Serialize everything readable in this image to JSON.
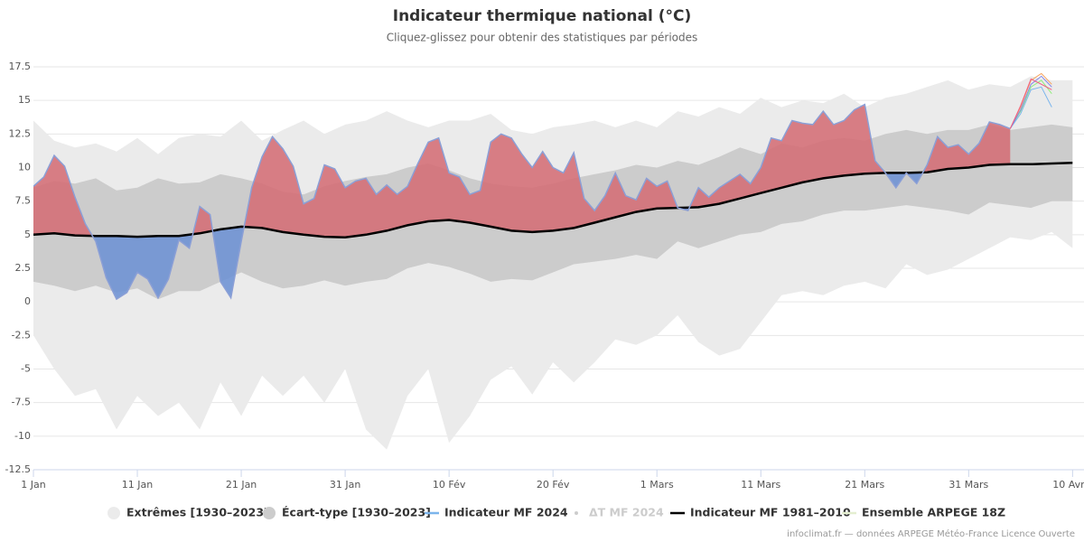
{
  "chart_data": {
    "type": "line",
    "title": "Indicateur thermique national (°C)",
    "subtitle": "Cliquez-glissez pour obtenir des statistiques par périodes",
    "credits": "infoclimat.fr — données ARPEGE Météo-France Licence Ouverte",
    "x": [
      0,
      2,
      4,
      6,
      8,
      10,
      12,
      14,
      16,
      18,
      20,
      22,
      24,
      26,
      28,
      30,
      32,
      34,
      36,
      38,
      40,
      42,
      44,
      46,
      48,
      50,
      52,
      54,
      56,
      58,
      60,
      62,
      64,
      66,
      68,
      70,
      72,
      74,
      76,
      78,
      80,
      82,
      84,
      86,
      88,
      90,
      92,
      94,
      96,
      98,
      100
    ],
    "xlim": [
      0,
      101.1
    ],
    "xticks": [
      {
        "value": 0,
        "label": "1 Jan"
      },
      {
        "value": 10,
        "label": "11 Jan"
      },
      {
        "value": 20,
        "label": "21 Jan"
      },
      {
        "value": 30,
        "label": "31 Jan"
      },
      {
        "value": 40,
        "label": "10 Fév"
      },
      {
        "value": 50,
        "label": "20 Fév"
      },
      {
        "value": 60,
        "label": "1 Mars"
      },
      {
        "value": 70,
        "label": "11 Mars"
      },
      {
        "value": 80,
        "label": "21 Mars"
      },
      {
        "value": 90,
        "label": "31 Mars"
      },
      {
        "value": 100,
        "label": "10 Avr"
      }
    ],
    "ylim": [
      -12.5,
      17.5
    ],
    "yticks": [
      -12.5,
      -10,
      -7.5,
      -5,
      -2.5,
      0,
      2.5,
      5,
      7.5,
      10,
      12.5,
      15,
      17.5
    ],
    "grid": true,
    "series": [
      {
        "name": "Extrêmes [1930–2023]",
        "color": "#ebebeb",
        "low": [
          -2.5,
          -5,
          -7,
          -6.5,
          -9.5,
          -7,
          -8.5,
          -7.5,
          -9.5,
          -6,
          -8.5,
          -5.5,
          -7,
          -5.5,
          -7.5,
          -5,
          -9.5,
          -11,
          -7,
          -5,
          -10.5,
          -8.5,
          -5.8,
          -4.8,
          -6.9,
          -4.5,
          -6,
          -4.5,
          -2.8,
          -3.2,
          -2.5,
          -1,
          -3,
          -4,
          -3.5,
          -1.5,
          0.5,
          0.8,
          0.5,
          1.2,
          1.5,
          1,
          2.8,
          2,
          2.4,
          3.2,
          4,
          4.8,
          4.6,
          5.2,
          4
        ],
        "high": [
          13.5,
          12,
          11.5,
          11.8,
          11.2,
          12.2,
          11,
          12.2,
          12.5,
          12.3,
          13.5,
          12,
          12.8,
          13.5,
          12.5,
          13.2,
          13.5,
          14.2,
          13.5,
          13,
          13.5,
          13.5,
          14,
          12.8,
          12.5,
          13,
          13.2,
          13.5,
          13,
          13.5,
          13,
          14.2,
          13.8,
          14.5,
          14,
          15.2,
          14.5,
          15,
          14.8,
          15.5,
          14.5,
          15.2,
          15.5,
          16,
          16.5,
          15.8,
          16.2,
          16,
          16.8,
          16.5,
          16.5
        ]
      },
      {
        "name": "Écart-type [1930–2023]",
        "color": "#cccccc",
        "low": [
          1.5,
          1.2,
          0.8,
          1.2,
          0.7,
          1,
          0.2,
          0.8,
          0.8,
          1.5,
          2.2,
          1.5,
          1,
          1.2,
          1.6,
          1.2,
          1.5,
          1.7,
          2.5,
          2.9,
          2.6,
          2.1,
          1.5,
          1.7,
          1.6,
          2.2,
          2.8,
          3,
          3.2,
          3.5,
          3.2,
          4.5,
          4,
          4.5,
          5,
          5.2,
          5.8,
          6,
          6.5,
          6.8,
          6.8,
          7,
          7.2,
          7,
          6.8,
          6.5,
          7.4,
          7.2,
          7,
          7.5,
          7.5
        ],
        "high": [
          8.5,
          9,
          8.8,
          9.2,
          8.3,
          8.5,
          9.2,
          8.8,
          8.9,
          9.5,
          9.2,
          8.8,
          8.2,
          8,
          8.6,
          9,
          9.3,
          9.5,
          10,
          10.3,
          9.8,
          9.2,
          8.8,
          8.6,
          8.5,
          8.8,
          9.2,
          9.5,
          9.8,
          10.2,
          10,
          10.5,
          10.2,
          10.8,
          11.5,
          11,
          11.8,
          11.5,
          12,
          12.2,
          12,
          12.5,
          12.8,
          12.5,
          12.8,
          12.8,
          13.2,
          12.8,
          13,
          13.2,
          13
        ]
      },
      {
        "name": "Indicateur MF 2024",
        "color": "#7cb5ec",
        "line_color": "#8b9fd6",
        "above_color": "#d46a72",
        "below_color": "#6a8fd4",
        "x": [
          0,
          1,
          2,
          3,
          4,
          5,
          6,
          7,
          8,
          9,
          10,
          11,
          12,
          13,
          14,
          15,
          16,
          17,
          18,
          19,
          20,
          21,
          22,
          23,
          24,
          25,
          26,
          27,
          28,
          29,
          30,
          31,
          32,
          33,
          34,
          35,
          36,
          37,
          38,
          39,
          40,
          41,
          42,
          43,
          44,
          45,
          46,
          47,
          48,
          49,
          50,
          51,
          52,
          53,
          54,
          55,
          56,
          57,
          58,
          59,
          60,
          61,
          62,
          63,
          64,
          65,
          66,
          67,
          68,
          69,
          70,
          71,
          72,
          73,
          74,
          75,
          76,
          77,
          78,
          79,
          80,
          81,
          82,
          83,
          84,
          85,
          86,
          87,
          88,
          89,
          90,
          91,
          92,
          93,
          94
        ],
        "values": [
          8.6,
          9.3,
          10.9,
          10.1,
          7.8,
          5.8,
          4.5,
          1.8,
          0.2,
          0.7,
          2.2,
          1.7,
          0.3,
          1.7,
          4.6,
          4,
          7.1,
          6.5,
          1.5,
          0.3,
          4.5,
          8.5,
          10.8,
          12.3,
          11.4,
          10.1,
          7.3,
          7.7,
          10.2,
          9.9,
          8.5,
          9,
          9.2,
          8,
          8.7,
          8,
          8.6,
          10.3,
          11.9,
          12.2,
          9.6,
          9.3,
          8,
          8.3,
          11.9,
          12.5,
          12.2,
          11,
          10,
          11.2,
          10,
          9.6,
          11.1,
          7.7,
          6.8,
          7.9,
          9.6,
          7.9,
          7.6,
          9.2,
          8.6,
          9,
          7,
          6.8,
          8.5,
          7.8,
          8.5,
          9,
          9.5,
          8.8,
          10,
          12.2,
          12,
          13.5,
          13.3,
          13.2,
          14.2,
          13.2,
          13.5,
          14.3,
          14.7,
          10.5,
          9.6,
          8.5,
          9.6,
          8.8,
          10.2,
          12.3,
          11.5,
          11.7,
          11,
          11.8,
          13.4,
          13.2,
          12.9
        ]
      },
      {
        "name": "ΔT MF 2024",
        "color": "#cccccc",
        "visible": false
      },
      {
        "name": "Indicateur MF 1981–2010",
        "color": "#000000",
        "values": [
          5,
          5.1,
          4.95,
          4.9,
          4.9,
          4.85,
          4.9,
          4.9,
          5.1,
          5.4,
          5.6,
          5.5,
          5.2,
          5,
          4.85,
          4.8,
          5,
          5.3,
          5.7,
          6,
          6.1,
          5.9,
          5.6,
          5.3,
          5.2,
          5.3,
          5.5,
          5.9,
          6.3,
          6.7,
          6.95,
          7,
          7.05,
          7.3,
          7.7,
          8.1,
          8.5,
          8.9,
          9.2,
          9.4,
          9.55,
          9.6,
          9.6,
          9.65,
          9.9,
          10,
          10.2,
          10.25,
          10.25,
          10.3,
          10.35
        ]
      },
      {
        "name": "Ensemble ARPEGE 18Z",
        "color": "#e4eed0",
        "x": [
          94,
          95,
          96,
          97,
          98
        ],
        "members": [
          {
            "color": "#f7a35c",
            "values": [
              12.9,
              14.5,
              16.5,
              17,
              16.2
            ]
          },
          {
            "color": "#90ed7d",
            "values": [
              12.9,
              14.2,
              16,
              16.5,
              15.5
            ]
          },
          {
            "color": "#7cb5ec",
            "values": [
              12.9,
              14,
              15.8,
              16,
              14.5
            ]
          },
          {
            "color": "#8085e9",
            "values": [
              12.9,
              14.3,
              16.2,
              16.8,
              16
            ]
          },
          {
            "color": "#f15c80",
            "values": [
              12.9,
              14.6,
              16.6,
              16.2,
              15.8
            ]
          }
        ]
      }
    ]
  }
}
